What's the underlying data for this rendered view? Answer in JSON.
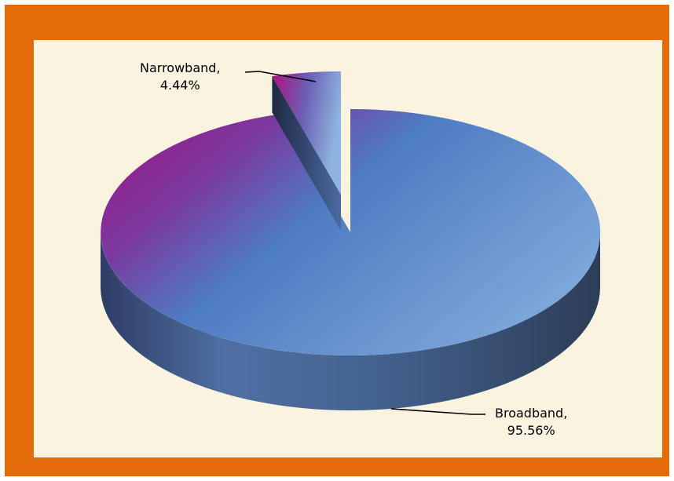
{
  "chart_data": {
    "type": "pie",
    "three_d": true,
    "slices": [
      {
        "label": "Narrowband",
        "value": 4.44,
        "label_line1": "Narrowband,",
        "label_line2": "4.44%",
        "exploded": true
      },
      {
        "label": "Broadband",
        "value": 95.56,
        "label_line1": "Broadband,",
        "label_line2": "95.56%",
        "exploded": false
      }
    ],
    "data_labels": "category and percent",
    "legend": "none"
  },
  "colors": {
    "frame": "#e36c0a",
    "background": "#faf3e0",
    "pie_blue": "#5b8fd0",
    "pie_magenta": "#a0107f",
    "pie_side": "#3d5a82"
  }
}
